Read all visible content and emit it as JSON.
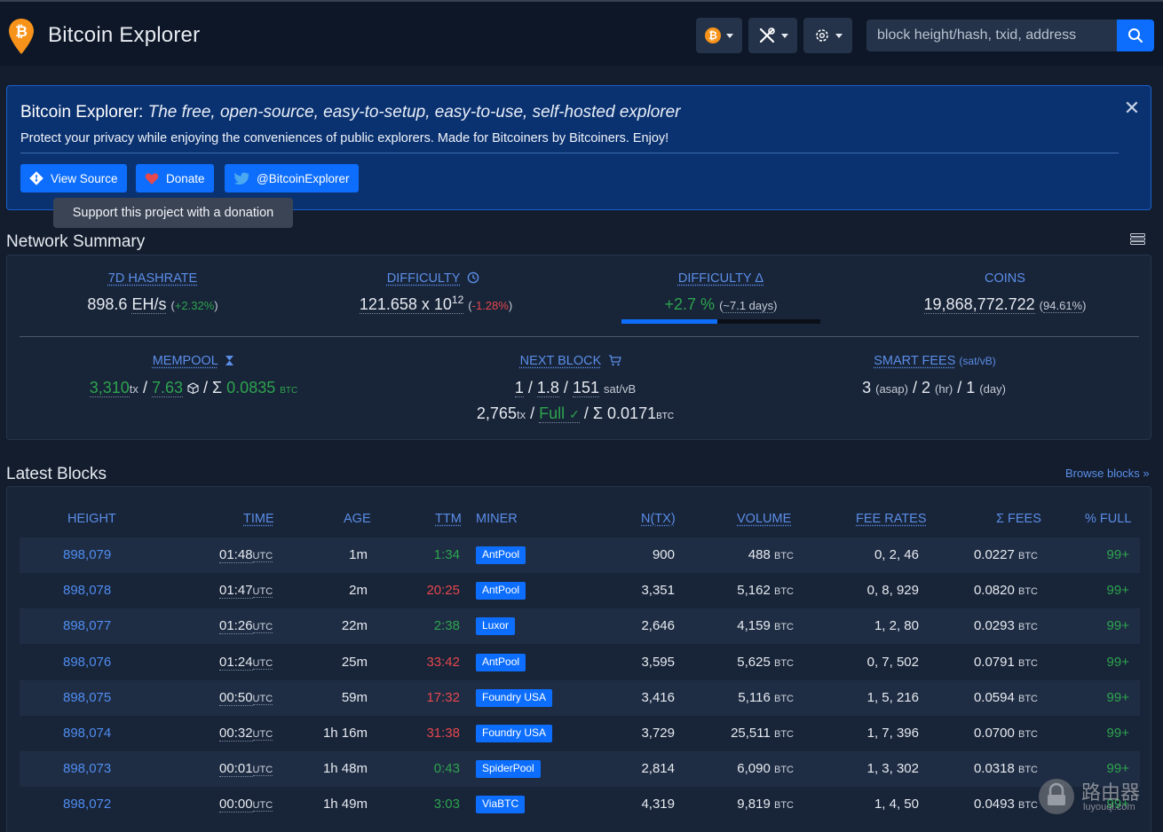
{
  "header": {
    "title": "Bitcoin Explorer",
    "search_placeholder": "block height/hash, txid, address",
    "currency_symbol": "₿"
  },
  "banner": {
    "title_bold": "Bitcoin Explorer:",
    "title_italic": "The free, open-source, easy-to-setup, easy-to-use, self-hosted explorer",
    "subtitle": "Protect your privacy while enjoying the conveniences of public explorers. Made for Bitcoiners by Bitcoiners. Enjoy!",
    "buttons": {
      "source": "View Source",
      "donate": "Donate",
      "twitter": "@BitcoinExplorer"
    },
    "tooltip": "Support this project with a donation"
  },
  "network": {
    "heading": "Network Summary",
    "hashrate": {
      "label": "7D HASHRATE",
      "value": "898.6",
      "unit": "EH/s",
      "change": "+2.32%"
    },
    "difficulty": {
      "label": "DIFFICULTY",
      "value": "121.658 x 10",
      "exp": "12",
      "change": "-1.28%"
    },
    "difficulty_delta": {
      "label": "DIFFICULTY Δ",
      "value": "+2.7 %",
      "eta": "~7.1 days",
      "progress": 0.48
    },
    "coins": {
      "label": "COINS",
      "value": "19,868,772.722",
      "pct": "94.61%"
    },
    "mempool": {
      "label": "MEMPOOL",
      "tx": "3,310",
      "tx_unit": "tx",
      "blocks": "7.63",
      "fees": "0.0835",
      "fees_unit": "BTC"
    },
    "next_block": {
      "label": "NEXT BLOCK",
      "min": "1",
      "median": "1.8",
      "max": "151",
      "rate_unit": "sat/vB",
      "tx": "2,765",
      "tx_unit": "tx",
      "status": "Full",
      "fees": "0.0171",
      "fees_unit": "BTC"
    },
    "smart_fees": {
      "label": "SMART FEES",
      "unit": "(sat/vB)",
      "asap": "3",
      "asap_lbl": "(asap)",
      "hr": "2",
      "hr_lbl": "(hr)",
      "day": "1",
      "day_lbl": "(day)"
    }
  },
  "blocks": {
    "heading": "Latest Blocks",
    "browse_link": "Browse blocks »",
    "columns": [
      "HEIGHT",
      "TIME",
      "AGE",
      "TTM",
      "MINER",
      "N(TX)",
      "VOLUME",
      "FEE RATES",
      "Σ FEES",
      "% FULL"
    ],
    "rows": [
      {
        "height": "898,079",
        "time": "01:48",
        "age": "1m",
        "ttm": "1:34",
        "ttm_color": "green",
        "miner": "AntPool",
        "ntx": "900",
        "volume": "488",
        "fee_rates": "0, 2, 46",
        "fees": "0.0227",
        "full": "99+"
      },
      {
        "height": "898,078",
        "time": "01:47",
        "age": "2m",
        "ttm": "20:25",
        "ttm_color": "red",
        "miner": "AntPool",
        "ntx": "3,351",
        "volume": "5,162",
        "fee_rates": "0, 8, 929",
        "fees": "0.0820",
        "full": "99+"
      },
      {
        "height": "898,077",
        "time": "01:26",
        "age": "22m",
        "ttm": "2:38",
        "ttm_color": "green",
        "miner": "Luxor",
        "ntx": "2,646",
        "volume": "4,159",
        "fee_rates": "1, 2, 80",
        "fees": "0.0293",
        "full": "99+"
      },
      {
        "height": "898,076",
        "time": "01:24",
        "age": "25m",
        "ttm": "33:42",
        "ttm_color": "red",
        "miner": "AntPool",
        "ntx": "3,595",
        "volume": "5,625",
        "fee_rates": "0, 7, 502",
        "fees": "0.0791",
        "full": "99+"
      },
      {
        "height": "898,075",
        "time": "00:50",
        "age": "59m",
        "ttm": "17:32",
        "ttm_color": "red",
        "miner": "Foundry USA",
        "ntx": "3,416",
        "volume": "5,116",
        "fee_rates": "1, 5, 216",
        "fees": "0.0594",
        "full": "99+"
      },
      {
        "height": "898,074",
        "time": "00:32",
        "age": "1h 16m",
        "ttm": "31:38",
        "ttm_color": "red",
        "miner": "Foundry USA",
        "ntx": "3,729",
        "volume": "25,511",
        "fee_rates": "1, 7, 396",
        "fees": "0.0700",
        "full": "99+"
      },
      {
        "height": "898,073",
        "time": "00:01",
        "age": "1h 48m",
        "ttm": "0:43",
        "ttm_color": "green",
        "miner": "SpiderPool",
        "ntx": "2,814",
        "volume": "6,090",
        "fee_rates": "1, 3, 302",
        "fees": "0.0318",
        "full": "99+"
      },
      {
        "height": "898,072",
        "time": "00:00",
        "age": "1h 49m",
        "ttm": "3:03",
        "ttm_color": "green",
        "miner": "ViaBTC",
        "ntx": "4,319",
        "volume": "9,819",
        "fee_rates": "1, 4, 50",
        "fees": "0.0493",
        "full": "99+"
      }
    ],
    "time_unit": "UTC",
    "btc_unit": "BTC"
  },
  "watermark": {
    "cn": "路由器",
    "latin": "luyouqi.com"
  },
  "colors": {
    "accent": "#0d6efd",
    "green": "#2da44e",
    "red": "#e5484d",
    "bitcoin": "#f7931a"
  }
}
